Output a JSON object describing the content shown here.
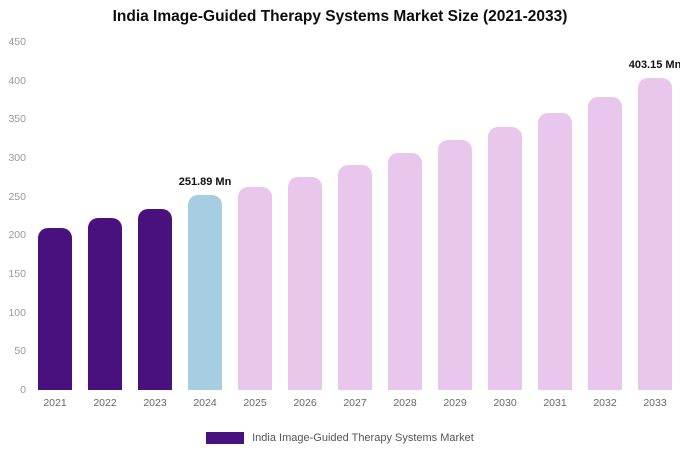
{
  "chart_data": {
    "type": "bar",
    "title": "India Image-Guided Therapy Systems Market Size (2021-2033)",
    "categories": [
      "2021",
      "2022",
      "2023",
      "2024",
      "2025",
      "2026",
      "2027",
      "2028",
      "2029",
      "2030",
      "2031",
      "2032",
      "2033"
    ],
    "values": [
      210,
      222,
      234,
      251.89,
      262,
      276,
      291,
      306,
      323,
      340,
      358,
      379,
      403.15
    ],
    "bar_colors": [
      "#49117d",
      "#49117d",
      "#49117d",
      "#a7cde2",
      "#e9c6ec",
      "#e9c6ec",
      "#e9c6ec",
      "#e9c6ec",
      "#e9c6ec",
      "#e9c6ec",
      "#e9c6ec",
      "#e9c6ec",
      "#e9c6ec"
    ],
    "annotations": [
      {
        "index": 3,
        "text": "251.89 Mn"
      },
      {
        "index": 12,
        "text": "403.15 Mn"
      }
    ],
    "xlabel": "",
    "ylabel": "",
    "ylim": [
      0,
      450
    ],
    "y_ticks": [
      0,
      50,
      100,
      150,
      200,
      250,
      300,
      350,
      400,
      450
    ],
    "grid": false,
    "legend": {
      "label": "India Image-Guided Therapy Systems Market",
      "color": "#49117d"
    },
    "colors": {
      "historical": "#49117d",
      "current_highlight": "#a7cde2",
      "forecast": "#e9c6ec",
      "background": "#ffffff"
    }
  }
}
